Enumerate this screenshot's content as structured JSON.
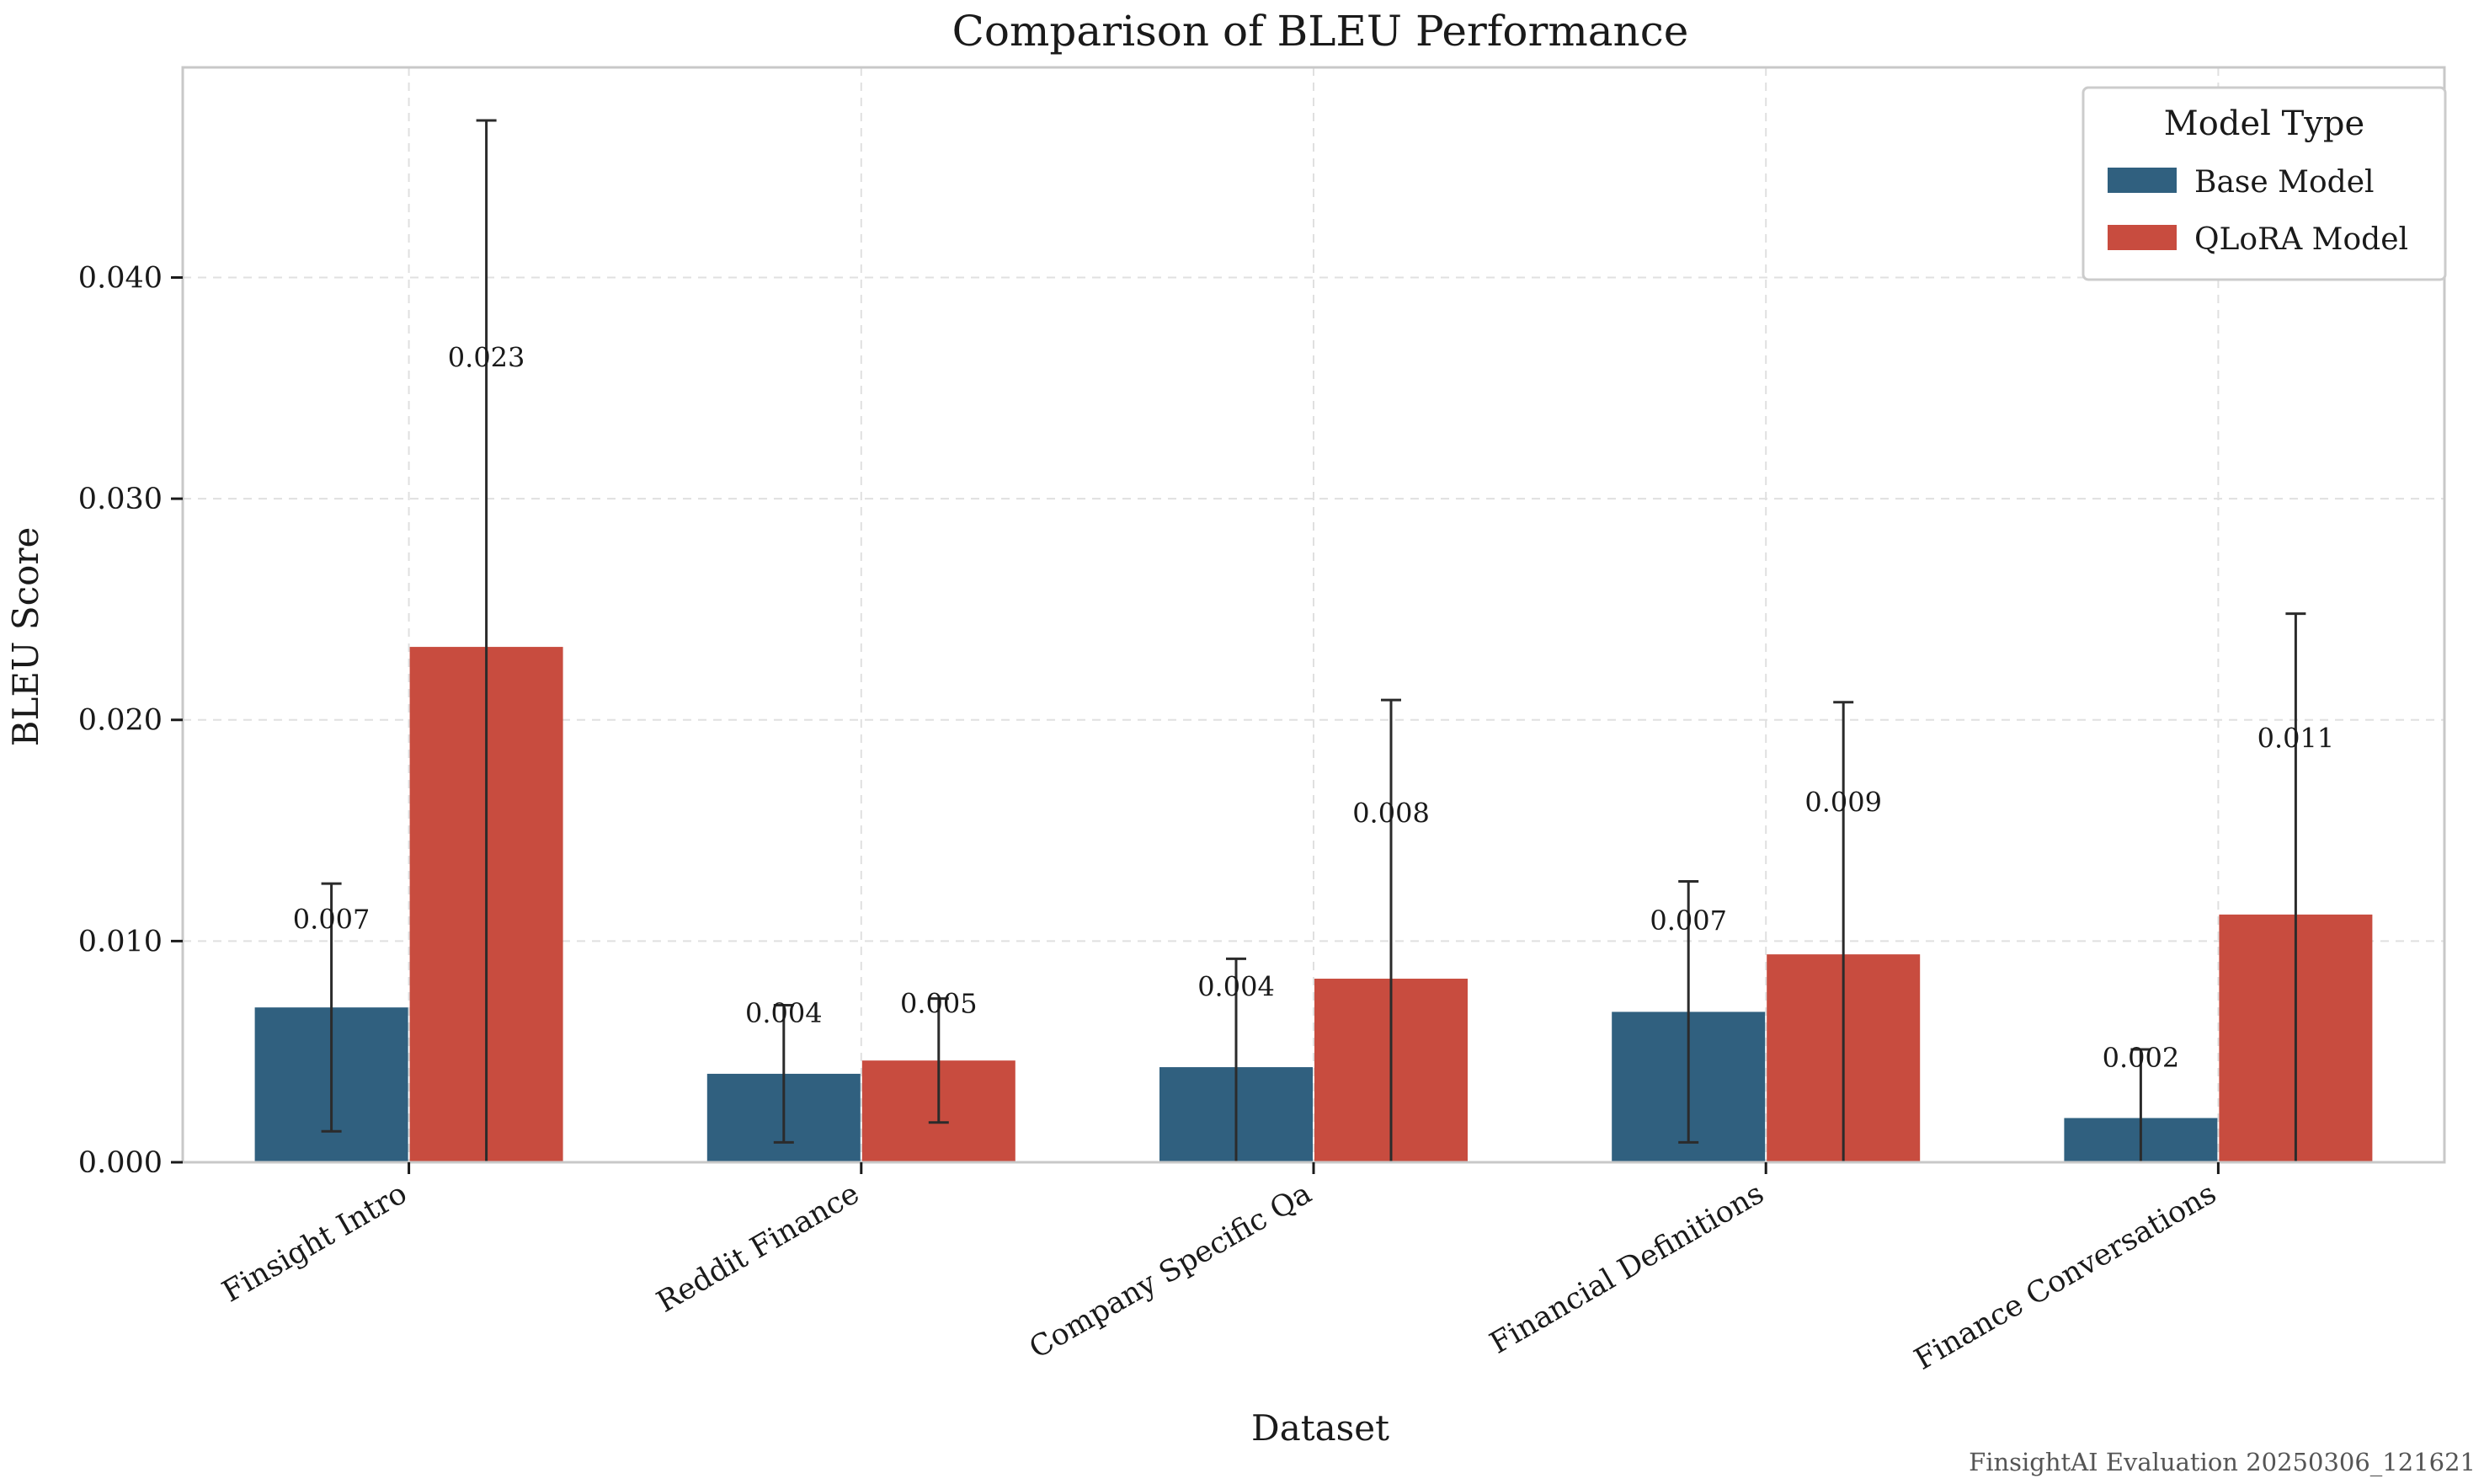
{
  "chart_data": {
    "type": "bar",
    "title": "Comparison of BLEU Performance",
    "xlabel": "Dataset",
    "ylabel": "BLEU Score",
    "ylim": [
      0,
      0.0495
    ],
    "yticks": [
      "0.000",
      "0.010",
      "0.020",
      "0.030",
      "0.040"
    ],
    "categories": [
      "Finsight Intro",
      "Reddit Finance",
      "Company Specific Qa",
      "Financial Definitions",
      "Finance Conversations"
    ],
    "series": [
      {
        "name": "Base Model",
        "color": "#30607f",
        "values": [
          0.007,
          0.004,
          0.0043,
          0.0068,
          0.002
        ],
        "errors": [
          0.0056,
          0.0031,
          0.0049,
          0.0059,
          0.0031
        ],
        "labels": [
          "0.007",
          "0.004",
          "0.004",
          "0.007",
          "0.002"
        ]
      },
      {
        "name": "QLoRA Model",
        "color": "#c84c3f",
        "values": [
          0.0233,
          0.0046,
          0.0083,
          0.0094,
          0.0112
        ],
        "errors": [
          0.0238,
          0.0028,
          0.0126,
          0.0114,
          0.0136
        ],
        "labels": [
          "0.023",
          "0.005",
          "0.008",
          "0.009",
          "0.011"
        ]
      }
    ],
    "grid": true,
    "legend": {
      "title": "Model Type",
      "position": "top-right"
    }
  },
  "footer": "FinsightAI Evaluation 20250306_121621"
}
